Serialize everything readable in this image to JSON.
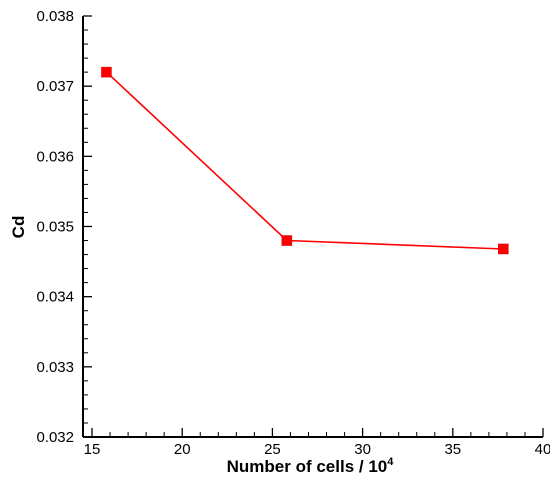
{
  "chart_data": {
    "type": "line",
    "xlabel": "Number of cells / 10",
    "xlabel_superscript": "4",
    "ylabel": "Cd",
    "xlim": [
      14.5,
      40
    ],
    "ylim": [
      0.032,
      0.038
    ],
    "x_ticks": [
      {
        "value": 15,
        "label": "15"
      },
      {
        "value": 20,
        "label": "20"
      },
      {
        "value": 25,
        "label": "25"
      },
      {
        "value": 30,
        "label": "30"
      },
      {
        "value": 35,
        "label": "35"
      },
      {
        "value": 40,
        "label": "40"
      }
    ],
    "y_ticks": [
      {
        "value": 0.032,
        "label": "0.032"
      },
      {
        "value": 0.033,
        "label": "0.033"
      },
      {
        "value": 0.034,
        "label": "0.034"
      },
      {
        "value": 0.035,
        "label": "0.035"
      },
      {
        "value": 0.036,
        "label": "0.036"
      },
      {
        "value": 0.037,
        "label": "0.037"
      },
      {
        "value": 0.038,
        "label": "0.038"
      }
    ],
    "grid": false,
    "series": [
      {
        "x": [
          15.8,
          25.8,
          37.8
        ],
        "y": [
          0.0372,
          0.0348,
          0.03468
        ],
        "color": "#ff0000",
        "marker": "square"
      }
    ]
  }
}
